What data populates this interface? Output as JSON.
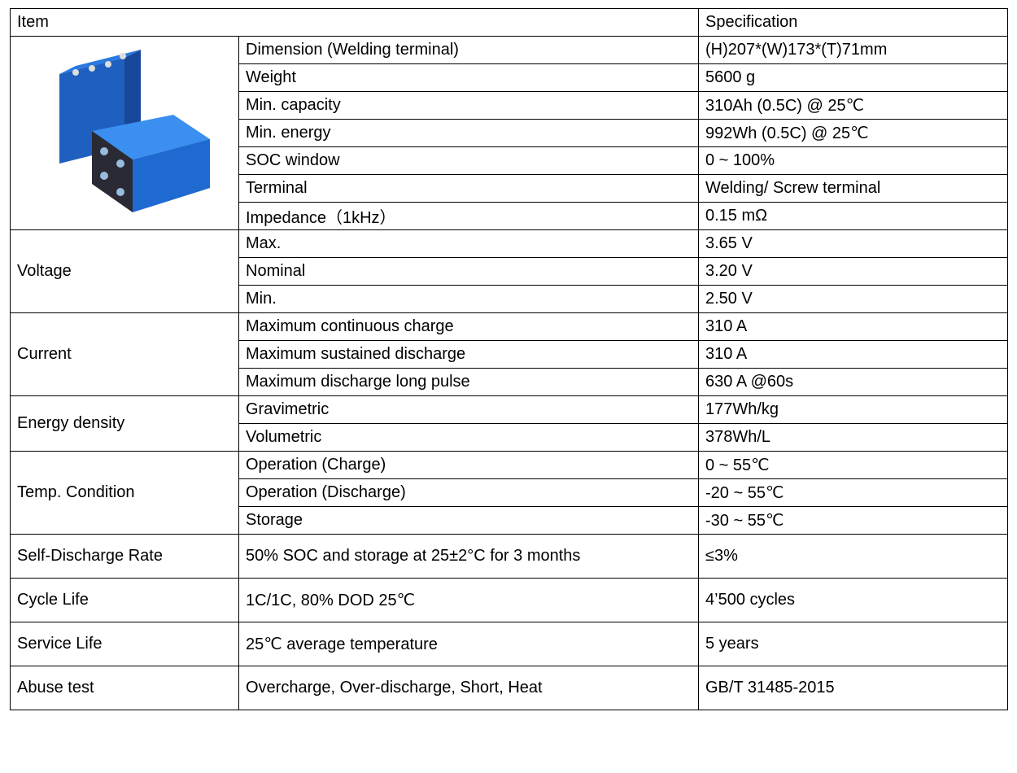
{
  "table": {
    "header": [
      "Item",
      "Specification"
    ],
    "sections": [
      {
        "rows": [
          [
            "Dimension (Welding terminal)",
            "(H)207*(W)173*(T)71mm"
          ],
          [
            "Weight",
            "5600 g"
          ],
          [
            "Min. capacity",
            "310Ah (0.5C) @ 25℃"
          ],
          [
            "Min. energy",
            "992Wh (0.5C) @ 25℃"
          ],
          [
            "SOC window",
            "0 ~ 100%"
          ],
          [
            "Terminal",
            "Welding/ Screw terminal"
          ],
          [
            "Impedance（1kHz）",
            "0.15 mΩ"
          ]
        ]
      },
      {
        "label": "Voltage",
        "rows": [
          [
            "Max.",
            "3.65 V"
          ],
          [
            "Nominal",
            "3.20 V"
          ],
          [
            "Min.",
            "2.50 V"
          ]
        ]
      },
      {
        "label": "Current",
        "rows": [
          [
            "Maximum continuous charge",
            "310 A"
          ],
          [
            "Maximum sustained discharge",
            "310 A"
          ],
          [
            "Maximum discharge long pulse",
            "630 A @60s"
          ]
        ]
      },
      {
        "label": "Energy density",
        "rows": [
          [
            "Gravimetric",
            "177Wh/kg"
          ],
          [
            "Volumetric",
            "378Wh/L"
          ]
        ]
      },
      {
        "label": "Temp. Condition",
        "rows": [
          [
            "Operation (Charge)",
            "0 ~ 55℃"
          ],
          [
            "Operation (Discharge)",
            "-20 ~ 55℃"
          ],
          [
            "Storage",
            "-30 ~ 55℃"
          ]
        ]
      }
    ],
    "single_rows": [
      [
        "Self-Discharge Rate",
        "50% SOC and storage at 25±2°C for 3 months",
        "≤3%"
      ],
      [
        "Cycle Life",
        "1C/1C, 80% DOD 25℃",
        "4’500 cycles"
      ],
      [
        "Service Life",
        "25℃ average temperature",
        "5 years"
      ],
      [
        "Abuse test",
        "Overcharge, Over-discharge, Short, Heat",
        "GB/T 31485-2015"
      ]
    ]
  }
}
